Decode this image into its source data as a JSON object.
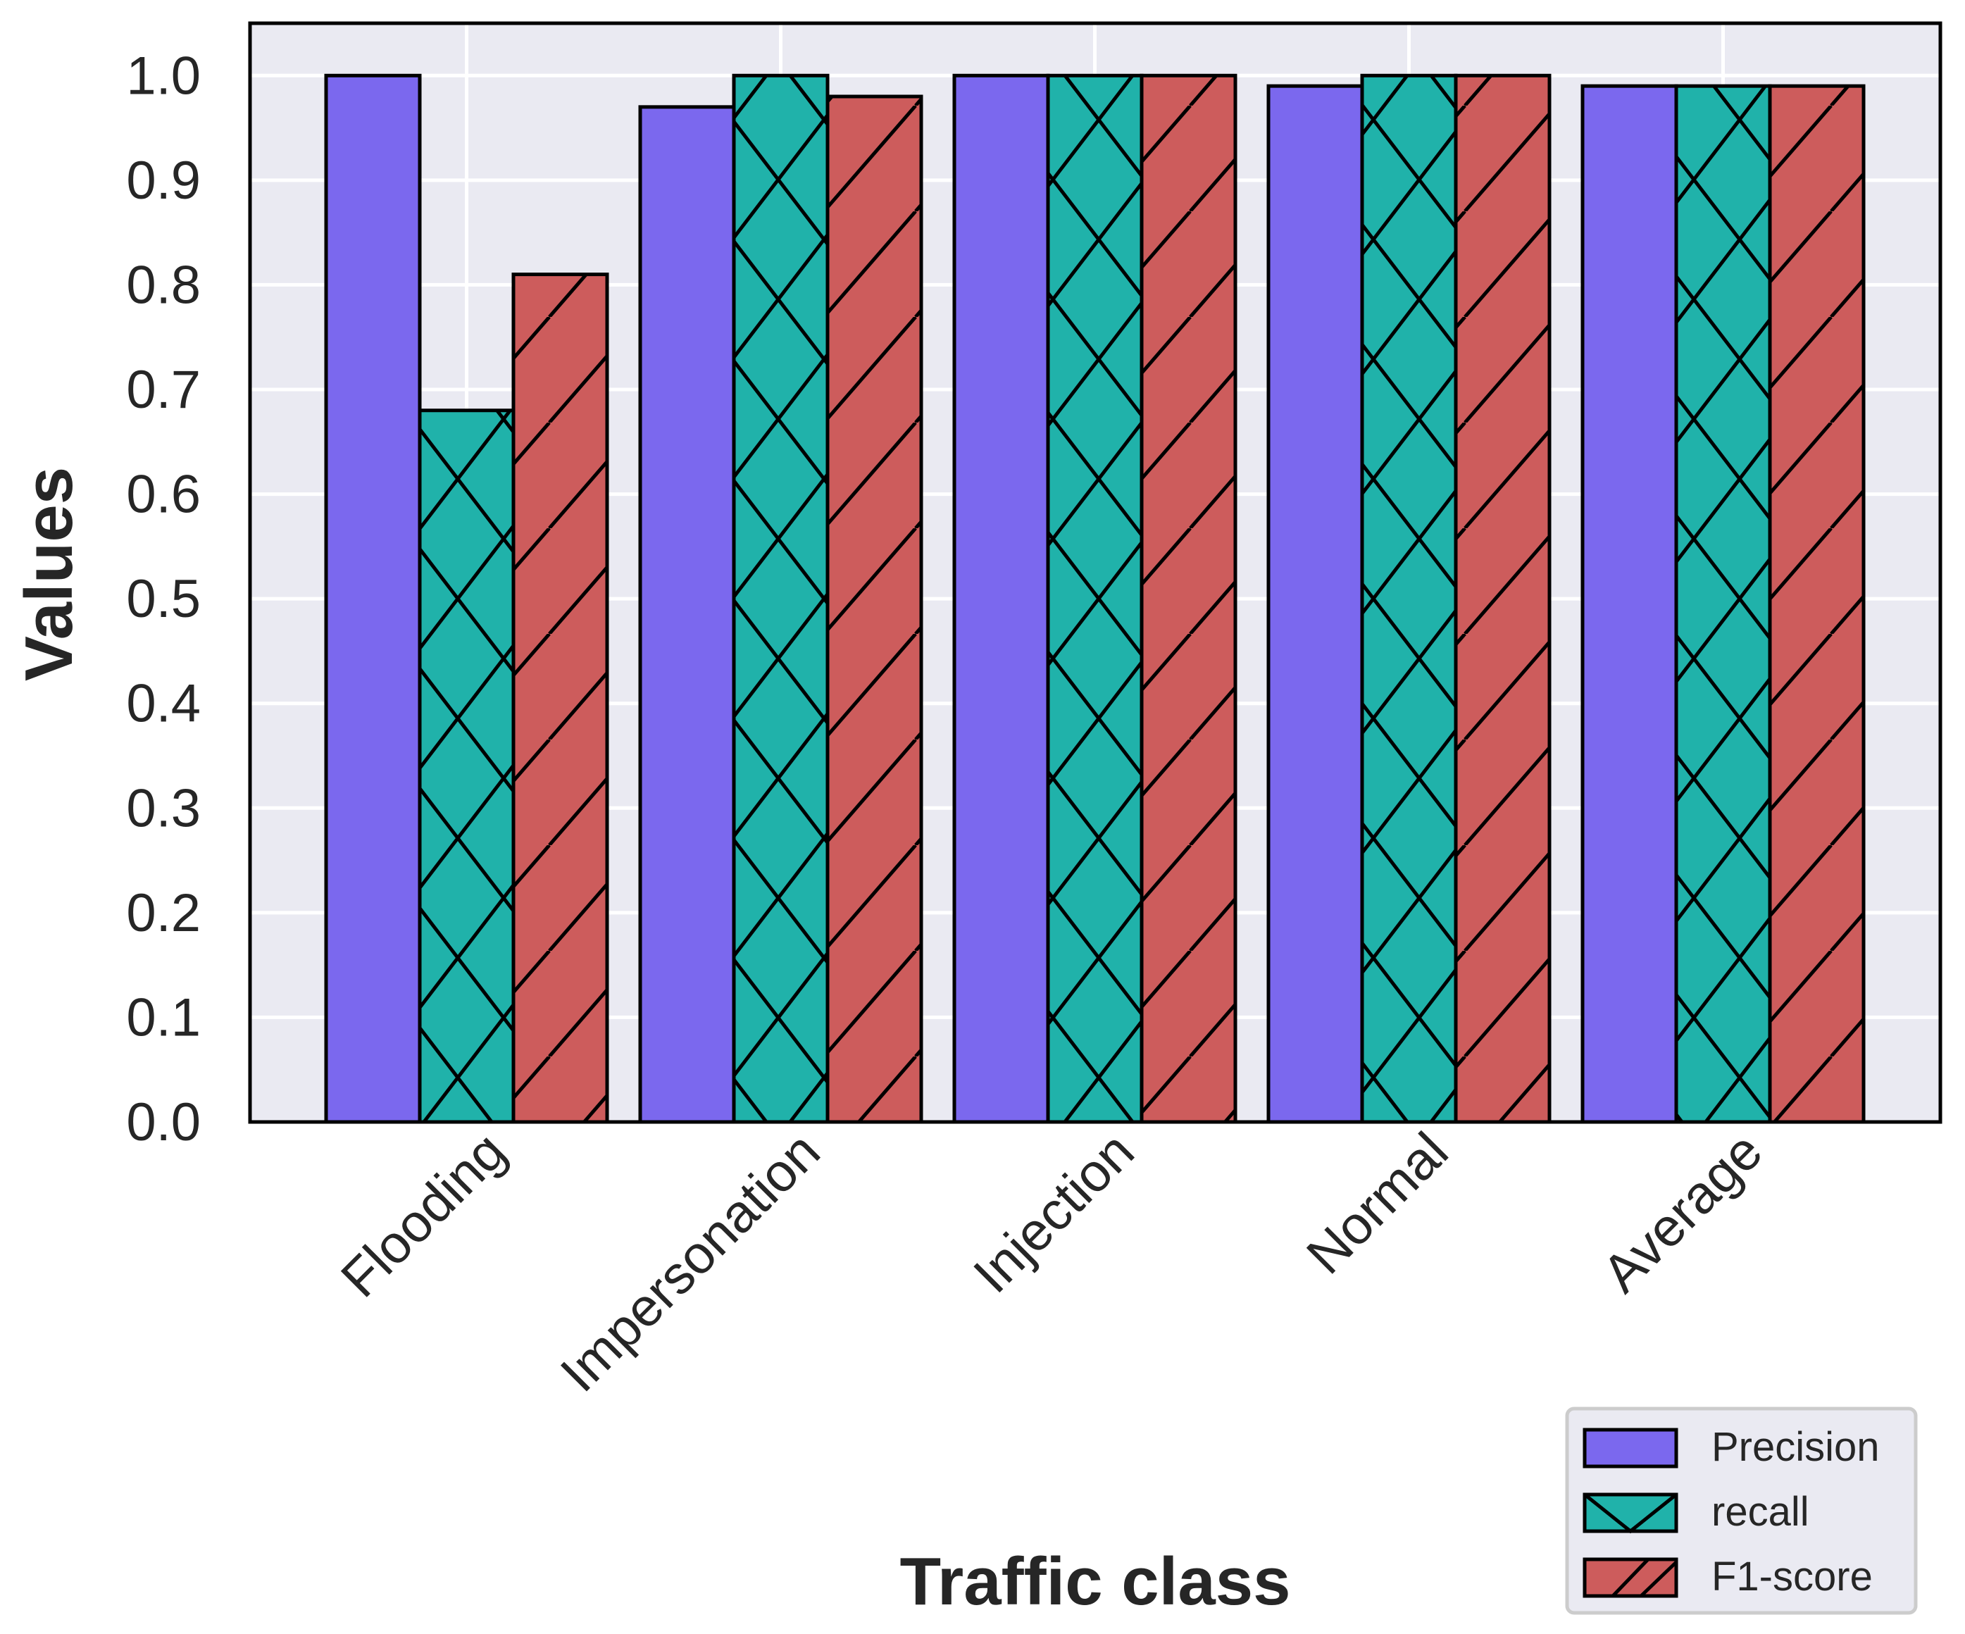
{
  "chart_data": {
    "type": "bar",
    "title": "",
    "xlabel": "Traffic class",
    "ylabel": "Values",
    "ylim": [
      0,
      1.05
    ],
    "yticks": [
      "0.0",
      "0.1",
      "0.2",
      "0.3",
      "0.4",
      "0.5",
      "0.6",
      "0.7",
      "0.8",
      "0.9",
      "1.0"
    ],
    "grid": true,
    "legend_position": "bottom-right",
    "categories": [
      "Flooding",
      "Impersonation",
      "Injection",
      "Normal",
      "Average"
    ],
    "series": [
      {
        "name": "Precision",
        "color": "#7b68ee",
        "hatch": "none",
        "values": [
          1.0,
          0.97,
          1.0,
          0.99,
          0.99
        ]
      },
      {
        "name": "recall",
        "color": "#20b2aa",
        "hatch": "cross",
        "values": [
          0.68,
          1.0,
          1.0,
          1.0,
          0.99
        ]
      },
      {
        "name": "F1-score",
        "color": "#cd5c5c",
        "hatch": "diagonal",
        "values": [
          0.81,
          0.98,
          1.0,
          1.0,
          0.99
        ]
      }
    ]
  }
}
